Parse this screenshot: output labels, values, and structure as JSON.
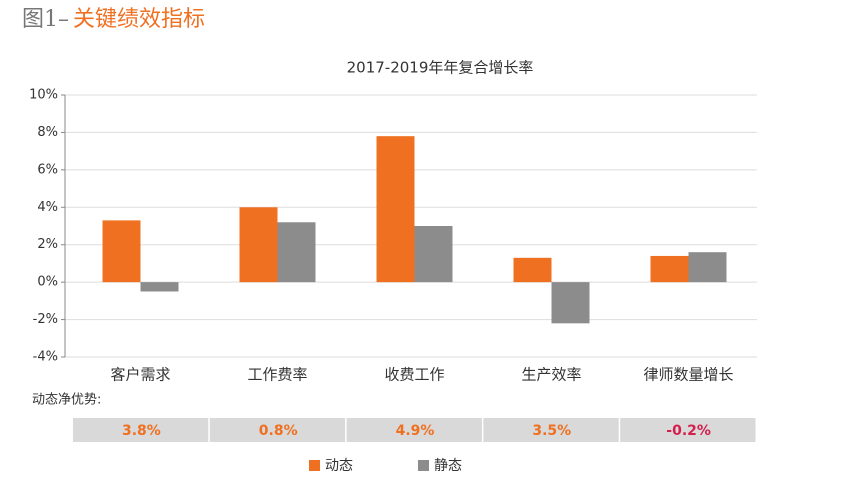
{
  "figure_label": "图1–",
  "figure_title": "关键绩效指标",
  "chart_data": {
    "type": "bar",
    "title": "2017-2019年年复合增长率",
    "categories": [
      "客户需求",
      "工作费率",
      "收费工作",
      "生产效率",
      "律师数量增长"
    ],
    "series": [
      {
        "name": "动态",
        "color": "#f07021",
        "values": [
          3.3,
          4.0,
          7.8,
          1.3,
          1.4
        ]
      },
      {
        "name": "静态",
        "color": "#8c8c8c",
        "values": [
          -0.5,
          3.2,
          3.0,
          -2.2,
          1.6
        ]
      }
    ],
    "ylim": [
      -4,
      10
    ],
    "yticks": [
      {
        "value": -4,
        "label": "-4%"
      },
      {
        "value": -2,
        "label": "-2%"
      },
      {
        "value": 0,
        "label": "0%"
      },
      {
        "value": 2,
        "label": "2%"
      },
      {
        "value": 4,
        "label": "4%"
      },
      {
        "value": 6,
        "label": "6%"
      },
      {
        "value": 8,
        "label": "8%"
      },
      {
        "value": 10,
        "label": "10%"
      }
    ],
    "grid": true,
    "advantage": {
      "label": "动态净优势:",
      "values": [
        3.8,
        0.8,
        4.9,
        3.5,
        -0.2
      ],
      "value_labels": [
        "3.8%",
        "0.8%",
        "4.9%",
        "3.5%",
        "-0.2%"
      ],
      "positive_color": "#f07021",
      "negative_color": "#d41f4e"
    }
  }
}
